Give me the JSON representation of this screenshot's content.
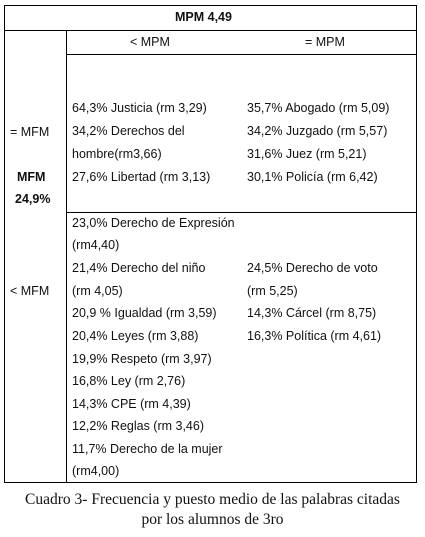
{
  "table": {
    "title": "MPM 4,49",
    "col_less": "< MPM",
    "col_equal": "= MPM",
    "row_equal_label": "= MFM",
    "mfm_label": "MFM",
    "mfm_value": "24,9%",
    "row_less_label": "< MFM",
    "eq_less": [
      "64,3%  Justicia (rm 3,29)",
      "34,2%  Derechos del",
      "hombre(rm3,66)",
      "27,6%  Libertad (rm 3,13)"
    ],
    "eq_equal": [
      "35,7%  Abogado (rm 5,09)",
      "34,2% Juzgado (rm 5,57)",
      "31,6%  Juez (rm 5,21)",
      "30,1%  Policía (rm 6,42)"
    ],
    "less_less": [
      "23,0%  Derecho de Expresión",
      "(rm4,40)",
      "21,4%  Derecho del niño",
      "(rm 4,05)",
      "20,9 %  Igualdad (rm 3,59)",
      "20,4%  Leyes (rm 3,88)",
      "19,9%  Respeto (rm 3,97)",
      "16,8%  Ley (rm 2,76)",
      "14,3%  CPE (rm 4,39)",
      "12,2%  Reglas (rm 3,46)",
      "11,7% Derecho de la mujer",
      "(rm4,00)"
    ],
    "less_equal": [
      "24,5% Derecho de voto",
      "(rm 5,25)",
      "14,3% Cárcel (rm 8,75)",
      "16,3% Política (rm 4,61)"
    ]
  },
  "caption": {
    "line1": "Cuadro 3- Frecuencia y puesto medio de las palabras citadas",
    "line2": "por los alumnos de 3ro"
  }
}
